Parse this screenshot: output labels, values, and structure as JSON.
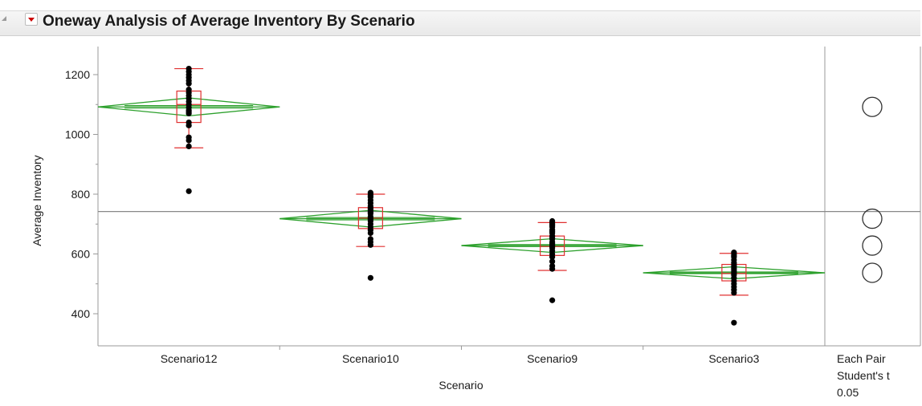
{
  "header": {
    "title": "Oneway Analysis of Average Inventory By Scenario",
    "collapse_icon": "collapse-triangle-icon",
    "menu_icon": "red-triangle-menu-icon"
  },
  "colors": {
    "diamond": "#2ca02c",
    "box": "#e03030",
    "point": "#000000",
    "grand_mean_line": "#888888",
    "comparison_circle": "#333333"
  },
  "chart_data": {
    "type": "oneway",
    "xlabel": "Scenario",
    "ylabel": "Average Inventory",
    "ylim": [
      300,
      1300
    ],
    "yticks": [
      400,
      600,
      800,
      1000,
      1200
    ],
    "grid": false,
    "grand_mean": 742,
    "categories": [
      "Scenario12",
      "Scenario10",
      "Scenario9",
      "Scenario3"
    ],
    "groups": [
      {
        "name": "Scenario12",
        "mean": 1092,
        "ci_low": 1062,
        "ci_high": 1122,
        "box": {
          "q1": 1040,
          "median": 1100,
          "q3": 1145,
          "whisker_low": 955,
          "whisker_high": 1220
        },
        "points": [
          1220,
          1210,
          1200,
          1190,
          1180,
          1170,
          1150,
          1140,
          1130,
          1120,
          1110,
          1100,
          1090,
          1080,
          1075,
          1070,
          1040,
          1030,
          990,
          980,
          960,
          810
        ]
      },
      {
        "name": "Scenario10",
        "mean": 718,
        "ci_low": 690,
        "ci_high": 746,
        "box": {
          "q1": 685,
          "median": 720,
          "q3": 755,
          "whisker_low": 625,
          "whisker_high": 800
        },
        "points": [
          805,
          800,
          795,
          790,
          780,
          770,
          760,
          755,
          750,
          745,
          740,
          735,
          725,
          720,
          715,
          710,
          700,
          690,
          680,
          670,
          650,
          640,
          630,
          520
        ]
      },
      {
        "name": "Scenario9",
        "mean": 628,
        "ci_low": 605,
        "ci_high": 651,
        "box": {
          "q1": 595,
          "median": 625,
          "q3": 660,
          "whisker_low": 545,
          "whisker_high": 705
        },
        "points": [
          710,
          705,
          700,
          695,
          690,
          680,
          675,
          670,
          660,
          655,
          650,
          640,
          635,
          630,
          625,
          620,
          610,
          600,
          590,
          575,
          560,
          550,
          445
        ]
      },
      {
        "name": "Scenario3",
        "mean": 537,
        "ci_low": 517,
        "ci_high": 557,
        "box": {
          "q1": 510,
          "median": 535,
          "q3": 565,
          "whisker_low": 462,
          "whisker_high": 602
        },
        "points": [
          605,
          600,
          595,
          590,
          580,
          570,
          565,
          560,
          555,
          550,
          545,
          540,
          535,
          530,
          520,
          510,
          500,
          490,
          480,
          470,
          370
        ]
      }
    ],
    "comparison_circles": {
      "label_lines": [
        "Each Pair",
        "Student's t",
        "0.05"
      ],
      "circles": [
        {
          "group": "Scenario12",
          "center": 1092
        },
        {
          "group": "Scenario10",
          "center": 718
        },
        {
          "group": "Scenario9",
          "center": 628
        },
        {
          "group": "Scenario3",
          "center": 537
        }
      ]
    }
  }
}
